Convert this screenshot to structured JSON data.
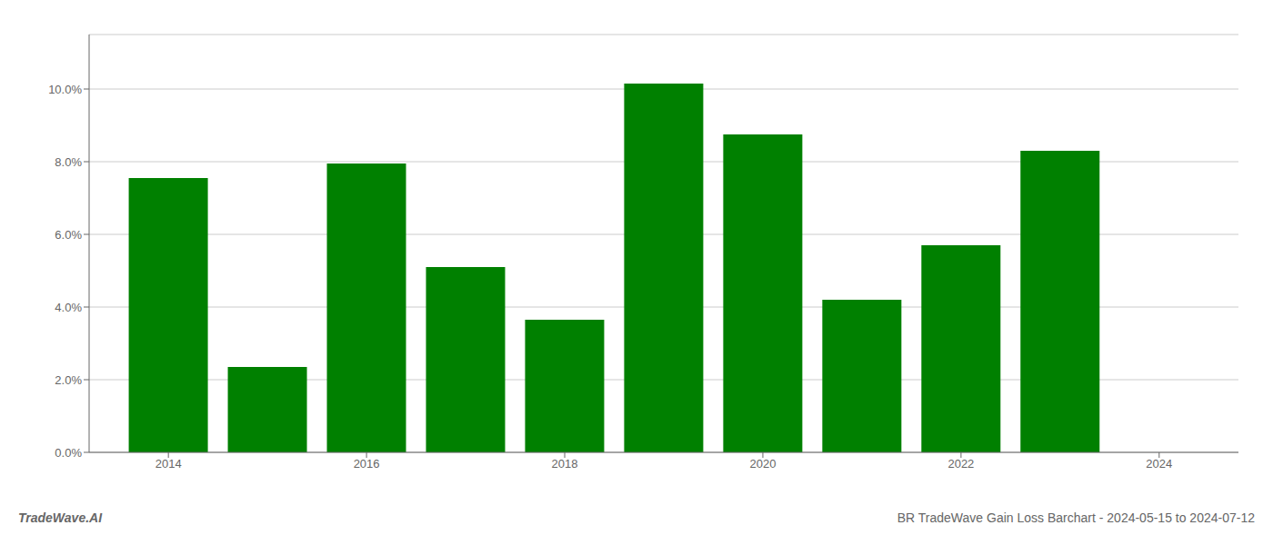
{
  "chart_data": {
    "type": "bar",
    "title": "BR TradeWave Gain Loss Barchart - 2024-05-15 to 2024-07-12",
    "annotations": [
      "TradeWave.AI"
    ],
    "x": [
      2014,
      2015,
      2016,
      2017,
      2018,
      2019,
      2020,
      2021,
      2022,
      2023
    ],
    "values": [
      0.0755,
      0.0235,
      0.0795,
      0.051,
      0.0365,
      0.1015,
      0.0875,
      0.042,
      0.057,
      0.083
    ],
    "color": "#008000",
    "xlim": [
      2013.2,
      2024.8
    ],
    "xticks": [
      2014,
      2016,
      2018,
      2020,
      2022,
      2024
    ],
    "ylim": [
      0,
      0.115
    ],
    "yticks": [
      {
        "value": 0.0,
        "label": "0.0%"
      },
      {
        "value": 0.02,
        "label": "2.0%"
      },
      {
        "value": 0.04,
        "label": "4.0%"
      },
      {
        "value": 0.06,
        "label": "6.0%"
      },
      {
        "value": 0.08,
        "label": "8.0%"
      },
      {
        "value": 0.1,
        "label": "10.0%"
      }
    ],
    "grid": true
  }
}
